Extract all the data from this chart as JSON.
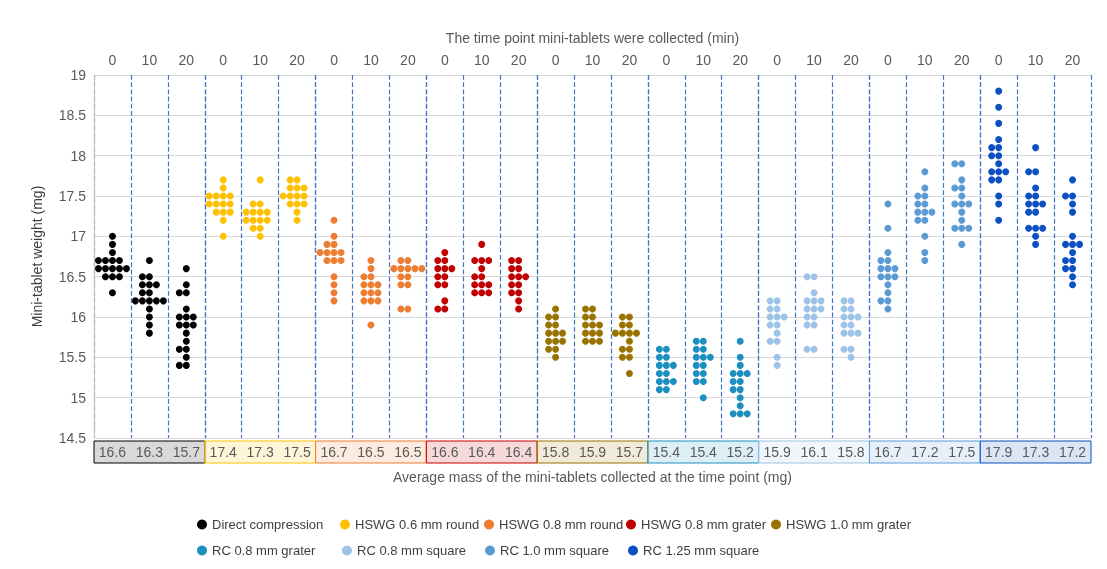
{
  "chart_data": [
    {
      "type": "scatter",
      "ylabel": "Mini-tablet weight (mg)",
      "categories": [
        "0",
        "10",
        "20"
      ],
      "ylim": [
        14.5,
        19
      ],
      "yticks": [
        14.5,
        15,
        15.5,
        16,
        16.5,
        17,
        17.5,
        18,
        18.5,
        19
      ],
      "grid": true,
      "legend": "bottom",
      "marker": "circle",
      "series": [
        {
          "name": "Direct compression",
          "color": "#000000",
          "x": [
            "0",
            "0",
            "0",
            "0",
            "0",
            "0",
            "0",
            "0",
            "0",
            "0",
            "0",
            "0",
            "0",
            "0",
            "0",
            "0",
            "10",
            "10",
            "10",
            "10",
            "10",
            "10",
            "10",
            "10",
            "10",
            "10",
            "10",
            "10",
            "10",
            "10",
            "10",
            "10",
            "10",
            "20",
            "20",
            "20",
            "20",
            "20",
            "20",
            "20",
            "20",
            "20",
            "20",
            "20",
            "20",
            "20",
            "20",
            "20",
            "20",
            "20",
            "20"
          ],
          "values": [
            16.7,
            16.7,
            16.7,
            16.7,
            16.6,
            16.6,
            16.6,
            16.5,
            16.5,
            16.6,
            16.5,
            16.3,
            17.0,
            16.9,
            16.8,
            16.6,
            16.7,
            16.5,
            16.5,
            16.4,
            16.4,
            16.3,
            16.3,
            16.2,
            16.2,
            16.2,
            16.2,
            16.2,
            16.1,
            16.0,
            15.9,
            15.8,
            16.4,
            16.1,
            16.0,
            16.0,
            16.0,
            15.9,
            15.9,
            15.7,
            15.6,
            15.6,
            15.5,
            15.4,
            15.4,
            16.3,
            16.3,
            16.6,
            16.4,
            15.8,
            15.9
          ]
        }
      ],
      "annotations": [
        "16.6 16.3 15.7"
      ]
    },
    {
      "type": "scatter",
      "categories": [
        "0",
        "10",
        "20"
      ],
      "ylim": [
        14.5,
        19
      ],
      "yticks": [
        14.5,
        15,
        15.5,
        16,
        16.5,
        17,
        17.5,
        18,
        18.5,
        19
      ],
      "tick_labels": "x",
      "grid": true,
      "legend": "bottom",
      "marker": "circle",
      "series": [
        {
          "name": "HSWG 0.6 mm round",
          "color": "#ffc000",
          "x": [
            "0",
            "0",
            "0",
            "0",
            "0",
            "0",
            "0",
            "0",
            "0",
            "0",
            "0",
            "0",
            "0",
            "0",
            "0",
            "10",
            "10",
            "10",
            "10",
            "10",
            "10",
            "10",
            "10",
            "10",
            "10",
            "10",
            "10",
            "10",
            "10",
            "20",
            "20",
            "20",
            "20",
            "20",
            "20",
            "20",
            "20",
            "20",
            "20",
            "20",
            "20",
            "20",
            "20"
          ],
          "values": [
            17.7,
            17.5,
            17.5,
            17.6,
            17.4,
            17.4,
            17.4,
            17.3,
            17.3,
            17.2,
            17.0,
            17.5,
            17.4,
            17.3,
            17.5,
            17.7,
            17.4,
            17.4,
            17.3,
            17.3,
            17.3,
            17.2,
            17.2,
            17.2,
            17.1,
            17.1,
            17.0,
            17.3,
            17.2,
            17.7,
            17.7,
            17.6,
            17.6,
            17.5,
            17.5,
            17.5,
            17.4,
            17.4,
            17.3,
            17.2,
            17.6,
            17.5,
            17.4
          ]
        }
      ],
      "annotations": [
        "17.4 17.3 17.5"
      ]
    },
    {
      "type": "scatter",
      "categories": [
        "0",
        "10",
        "20"
      ],
      "ylim": [
        14.5,
        19
      ],
      "yticks": [
        14.5,
        15,
        15.5,
        16,
        16.5,
        17,
        17.5,
        18,
        18.5,
        19
      ],
      "tick_labels": "x",
      "grid": true,
      "legend": "bottom",
      "marker": "circle",
      "series": [
        {
          "name": "HSWG 0.8 mm round",
          "color": "#ed7d31",
          "x": [
            "0",
            "0",
            "0",
            "0",
            "0",
            "0",
            "0",
            "0",
            "0",
            "0",
            "0",
            "0",
            "0",
            "0",
            "0",
            "10",
            "10",
            "10",
            "10",
            "10",
            "10",
            "10",
            "10",
            "10",
            "10",
            "10",
            "10",
            "10",
            "10",
            "20",
            "20",
            "20",
            "20",
            "20",
            "20",
            "20",
            "20",
            "20",
            "20",
            "20",
            "20",
            "20"
          ],
          "values": [
            17.2,
            17.0,
            16.9,
            16.9,
            16.8,
            16.8,
            16.8,
            16.7,
            16.7,
            16.5,
            16.4,
            16.3,
            16.2,
            16.8,
            16.7,
            16.7,
            16.6,
            16.5,
            16.5,
            16.4,
            16.4,
            16.3,
            16.3,
            16.2,
            16.2,
            16.2,
            16.4,
            16.3,
            15.9,
            16.7,
            16.7,
            16.6,
            16.6,
            16.6,
            16.5,
            16.5,
            16.4,
            16.4,
            16.1,
            16.1,
            16.6,
            16.6
          ]
        }
      ],
      "annotations": [
        "16.7 16.5 16.5"
      ]
    },
    {
      "type": "scatter",
      "categories": [
        "0",
        "10",
        "20"
      ],
      "ylim": [
        14.5,
        19
      ],
      "yticks": [
        14.5,
        15,
        15.5,
        16,
        16.5,
        17,
        17.5,
        18,
        18.5,
        19
      ],
      "tick_labels": "x",
      "grid": true,
      "legend": "bottom",
      "marker": "circle",
      "series": [
        {
          "name": "HSWG 0.8 mm grater",
          "color": "#c00000",
          "x": [
            "0",
            "0",
            "0",
            "0",
            "0",
            "0",
            "0",
            "0",
            "0",
            "0",
            "0",
            "0",
            "0",
            "10",
            "10",
            "10",
            "10",
            "10",
            "10",
            "10",
            "10",
            "10",
            "10",
            "10",
            "10",
            "10",
            "20",
            "20",
            "20",
            "20",
            "20",
            "20",
            "20",
            "20",
            "20",
            "20",
            "20",
            "20",
            "20"
          ],
          "values": [
            16.8,
            16.7,
            16.7,
            16.6,
            16.6,
            16.5,
            16.5,
            16.4,
            16.4,
            16.2,
            16.1,
            16.1,
            16.6,
            16.9,
            16.7,
            16.7,
            16.7,
            16.6,
            16.5,
            16.5,
            16.4,
            16.4,
            16.3,
            16.3,
            16.3,
            16.4,
            16.7,
            16.7,
            16.6,
            16.6,
            16.5,
            16.5,
            16.4,
            16.4,
            16.3,
            16.3,
            16.2,
            16.1,
            16.5
          ]
        }
      ],
      "annotations": [
        "16.6 16.4 16.4"
      ]
    },
    {
      "type": "scatter",
      "xlabel": "The time point mini-tablets were collected (min)",
      "categories": [
        "0",
        "10",
        "20"
      ],
      "ylim": [
        14.5,
        19
      ],
      "yticks": [
        14.5,
        15,
        15.5,
        16,
        16.5,
        17,
        17.5,
        18,
        18.5,
        19
      ],
      "tick_labels": "x",
      "grid": true,
      "legend": "bottom",
      "marker": "circle",
      "series": [
        {
          "name": "HSWG 1.0 mm grater",
          "color": "#997300",
          "x": [
            "0",
            "0",
            "0",
            "0",
            "0",
            "0",
            "0",
            "0",
            "0",
            "0",
            "0",
            "0",
            "0",
            "0",
            "10",
            "10",
            "10",
            "10",
            "10",
            "10",
            "10",
            "10",
            "10",
            "10",
            "10",
            "10",
            "10",
            "20",
            "20",
            "20",
            "20",
            "20",
            "20",
            "20",
            "20",
            "20",
            "20",
            "20",
            "20",
            "20",
            "20"
          ],
          "values": [
            16.1,
            16.0,
            16.0,
            15.9,
            15.9,
            15.8,
            15.8,
            15.8,
            15.7,
            15.7,
            15.6,
            15.6,
            15.5,
            15.7,
            16.1,
            16.1,
            16.0,
            16.0,
            15.9,
            15.9,
            15.8,
            15.8,
            15.8,
            15.7,
            15.7,
            15.7,
            15.9,
            16.0,
            16.0,
            15.9,
            15.9,
            15.8,
            15.8,
            15.8,
            15.7,
            15.6,
            15.6,
            15.5,
            15.5,
            15.3,
            15.8
          ]
        }
      ],
      "annotations": [
        "15.8 15.9 15.7",
        "Average mass of the mini-tablets collected at the time point (mg)"
      ]
    },
    {
      "type": "scatter",
      "categories": [
        "0",
        "10",
        "20"
      ],
      "ylim": [
        14.5,
        19
      ],
      "yticks": [
        14.5,
        15,
        15.5,
        16,
        16.5,
        17,
        17.5,
        18,
        18.5,
        19
      ],
      "tick_labels": "x",
      "grid": true,
      "legend": "bottom",
      "marker": "circle",
      "series": [
        {
          "name": "RC 0.8 mm grater",
          "color": "#1a8fc0",
          "x": [
            "0",
            "0",
            "0",
            "0",
            "0",
            "0",
            "0",
            "0",
            "0",
            "0",
            "0",
            "0",
            "0",
            "0",
            "10",
            "10",
            "10",
            "10",
            "10",
            "10",
            "10",
            "10",
            "10",
            "10",
            "10",
            "10",
            "10",
            "10",
            "20",
            "20",
            "20",
            "20",
            "20",
            "20",
            "20",
            "20",
            "20",
            "20",
            "20",
            "20",
            "20",
            "20",
            "20"
          ],
          "values": [
            15.6,
            15.6,
            15.5,
            15.5,
            15.4,
            15.4,
            15.3,
            15.3,
            15.2,
            15.2,
            15.2,
            15.1,
            15.1,
            15.4,
            15.7,
            15.7,
            15.6,
            15.6,
            15.5,
            15.5,
            15.5,
            15.4,
            15.4,
            15.3,
            15.3,
            15.2,
            15.2,
            15.0,
            15.7,
            15.5,
            15.4,
            15.3,
            15.3,
            15.2,
            15.2,
            15.1,
            15.1,
            15.0,
            14.9,
            14.8,
            14.8,
            14.8,
            15.3
          ]
        }
      ],
      "annotations": [
        "15.4 15.4 15.2"
      ]
    },
    {
      "type": "scatter",
      "categories": [
        "0",
        "10",
        "20"
      ],
      "ylim": [
        14.5,
        19
      ],
      "yticks": [
        14.5,
        15,
        15.5,
        16,
        16.5,
        17,
        17.5,
        18,
        18.5,
        19
      ],
      "tick_labels": "x",
      "grid": true,
      "legend": "bottom",
      "marker": "circle",
      "series": [
        {
          "name": "RC 0.8 mm square",
          "color": "#9dc3e6",
          "x": [
            "0",
            "0",
            "0",
            "0",
            "0",
            "0",
            "0",
            "0",
            "0",
            "0",
            "0",
            "0",
            "0",
            "0",
            "10",
            "10",
            "10",
            "10",
            "10",
            "10",
            "10",
            "10",
            "10",
            "10",
            "10",
            "10",
            "10",
            "10",
            "10",
            "20",
            "20",
            "20",
            "20",
            "20",
            "20",
            "20",
            "20",
            "20",
            "20",
            "20",
            "20",
            "20",
            "20",
            "20"
          ],
          "values": [
            16.2,
            16.2,
            16.1,
            16.1,
            16.0,
            16.0,
            15.9,
            15.8,
            15.7,
            15.7,
            15.5,
            15.4,
            15.9,
            16.0,
            16.5,
            16.5,
            16.3,
            16.2,
            16.2,
            16.2,
            16.1,
            16.1,
            16.0,
            16.0,
            15.9,
            15.9,
            15.6,
            15.6,
            16.1,
            16.2,
            16.2,
            16.1,
            16.1,
            16.0,
            16.0,
            16.0,
            15.9,
            15.9,
            15.8,
            15.8,
            15.8,
            15.6,
            15.6,
            15.5
          ]
        }
      ],
      "annotations": [
        "15.9 16.1 15.8"
      ]
    },
    {
      "type": "scatter",
      "categories": [
        "0",
        "10",
        "20"
      ],
      "ylim": [
        14.5,
        19
      ],
      "yticks": [
        14.5,
        15,
        15.5,
        16,
        16.5,
        17,
        17.5,
        18,
        18.5,
        19
      ],
      "tick_labels": "x",
      "grid": true,
      "legend": "bottom",
      "marker": "circle",
      "series": [
        {
          "name": "RC 1.0 mm square",
          "color": "#5b9bd5",
          "x": [
            "0",
            "0",
            "0",
            "0",
            "0",
            "0",
            "0",
            "0",
            "0",
            "0",
            "0",
            "0",
            "0",
            "0",
            "0",
            "0",
            "10",
            "10",
            "10",
            "10",
            "10",
            "10",
            "10",
            "10",
            "10",
            "10",
            "10",
            "10",
            "10",
            "10",
            "20",
            "20",
            "20",
            "20",
            "20",
            "20",
            "20",
            "20",
            "20",
            "20",
            "20",
            "20",
            "20",
            "20",
            "20"
          ],
          "values": [
            17.4,
            17.1,
            16.8,
            16.7,
            16.7,
            16.6,
            16.6,
            16.6,
            16.5,
            16.5,
            16.5,
            16.4,
            16.3,
            16.2,
            16.2,
            16.1,
            17.8,
            17.6,
            17.5,
            17.5,
            17.4,
            17.4,
            17.3,
            17.3,
            17.2,
            17.2,
            17.0,
            16.8,
            16.7,
            17.3,
            17.9,
            17.9,
            17.7,
            17.6,
            17.6,
            17.5,
            17.4,
            17.4,
            17.4,
            17.3,
            17.2,
            17.1,
            17.1,
            17.1,
            16.9
          ]
        }
      ],
      "annotations": [
        "16.7 17.2 17.5"
      ]
    },
    {
      "type": "scatter",
      "categories": [
        "0",
        "10",
        "20"
      ],
      "ylim": [
        14.5,
        19
      ],
      "yticks": [
        14.5,
        15,
        15.5,
        16,
        16.5,
        17,
        17.5,
        18,
        18.5,
        19
      ],
      "tick_labels": "x",
      "grid": true,
      "legend": "bottom",
      "marker": "circle",
      "series": [
        {
          "name": "RC 1.25 mm square",
          "color": "#0b4fc0",
          "x": [
            "0",
            "0",
            "0",
            "0",
            "0",
            "0",
            "0",
            "0",
            "0",
            "0",
            "0",
            "0",
            "0",
            "0",
            "0",
            "0",
            "0",
            "10",
            "10",
            "10",
            "10",
            "10",
            "10",
            "10",
            "10",
            "10",
            "10",
            "10",
            "10",
            "10",
            "10",
            "10",
            "10",
            "20",
            "20",
            "20",
            "20",
            "20",
            "20",
            "20",
            "20",
            "20",
            "20",
            "20",
            "20",
            "20",
            "20",
            "20",
            "20"
          ],
          "values": [
            18.8,
            18.6,
            18.4,
            18.2,
            18.1,
            18.1,
            18.0,
            18.0,
            17.9,
            17.8,
            17.8,
            17.7,
            17.7,
            17.5,
            17.4,
            17.2,
            17.8,
            18.1,
            17.8,
            17.8,
            17.6,
            17.5,
            17.5,
            17.4,
            17.4,
            17.3,
            17.3,
            17.1,
            17.1,
            17.1,
            17.0,
            16.9,
            17.4,
            17.7,
            17.5,
            17.5,
            17.4,
            17.3,
            17.0,
            16.9,
            16.9,
            16.9,
            16.8,
            16.7,
            16.7,
            16.6,
            16.6,
            16.5,
            16.4
          ]
        }
      ],
      "annotations": [
        "17.9 17.3 17.2"
      ]
    }
  ]
}
